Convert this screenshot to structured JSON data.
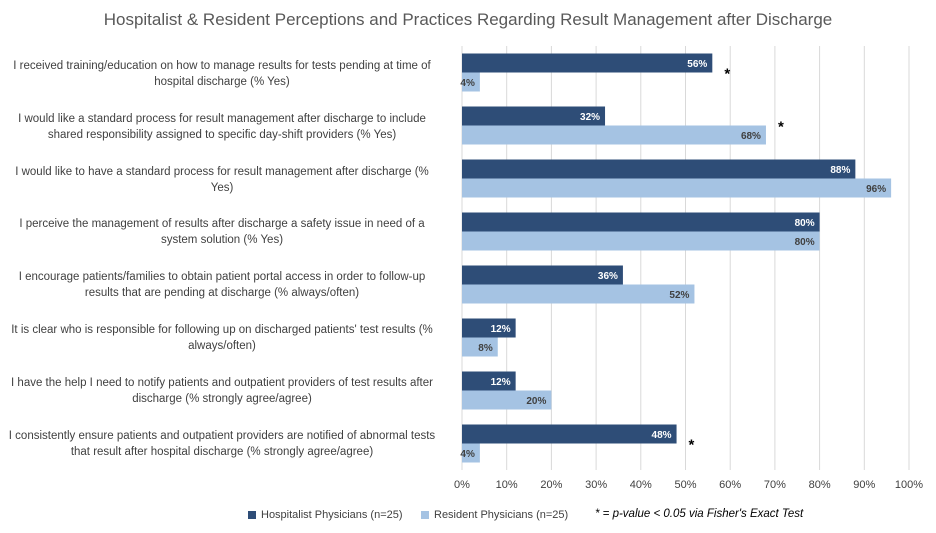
{
  "chart_data": {
    "type": "bar",
    "orientation": "horizontal",
    "title": "Hospitalist & Resident Perceptions and Practices Regarding Result Management after Discharge",
    "categories": [
      "I received training/education on how to manage results for tests pending at time of hospital discharge (% Yes)",
      "I would like a standard process for result management after discharge to include shared responsibility assigned to specific day-shift providers (% Yes)",
      "I would like to have a standard process for result management after discharge (% Yes)",
      "I perceive the management of results after discharge a safety issue in need of a system solution (% Yes)",
      "I encourage patients/families to obtain patient portal access in order to follow-up results that are pending at discharge (% always/often)",
      "It is clear who is responsible for following up on discharged patients' test results (% always/often)",
      "I have the help I need to notify patients and outpatient providers of test results after discharge (% strongly agree/agree)",
      "I consistently ensure patients and outpatient providers are notified of abnormal tests that result after hospital discharge (% strongly agree/agree)"
    ],
    "series": [
      {
        "name": "Hospitalist Physicians (n=25)",
        "color": "#2e4d77",
        "values": [
          56,
          32,
          88,
          80,
          36,
          12,
          12,
          48
        ]
      },
      {
        "name": "Resident Physicians (n=25)",
        "color": "#a5c3e3",
        "values": [
          4,
          68,
          96,
          80,
          52,
          8,
          20,
          4
        ]
      }
    ],
    "significant": [
      true,
      true,
      false,
      false,
      false,
      false,
      false,
      true
    ],
    "significance_marker": "*",
    "footnote": "* = p-value < 0.05 via Fisher's Exact Test",
    "xlim": [
      0,
      100
    ],
    "xticks": [
      0,
      10,
      20,
      30,
      40,
      50,
      60,
      70,
      80,
      90,
      100
    ],
    "tick_suffix": "%",
    "grid": true,
    "legend_position": "bottom"
  }
}
